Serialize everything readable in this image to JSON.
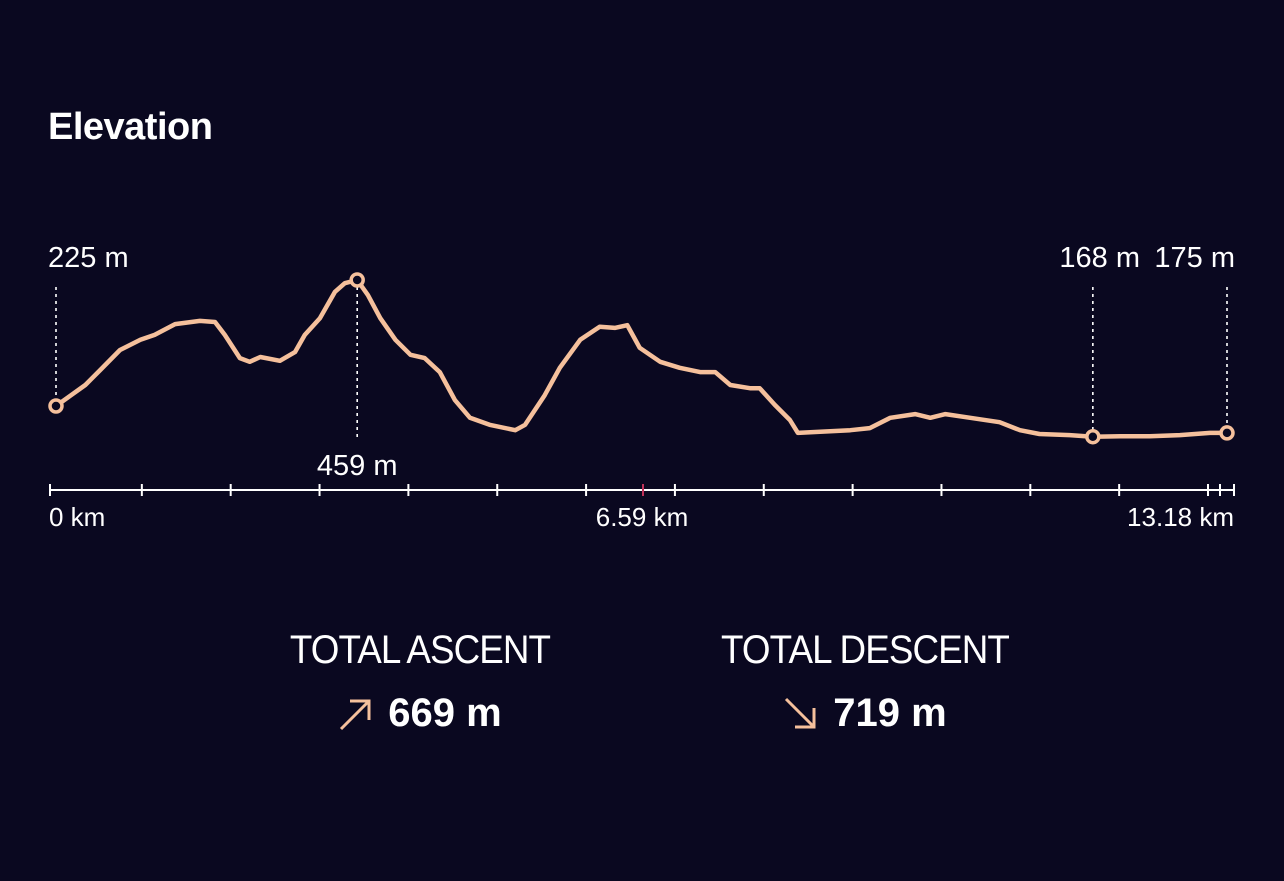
{
  "title": "Elevation",
  "colors": {
    "background": "#0a0820",
    "line": "#f5c09c",
    "axis": "#ffffff",
    "midTick": "#c0335a",
    "text": "#ffffff"
  },
  "chart_data": {
    "type": "line",
    "title": "Elevation",
    "xlabel": "",
    "ylabel": "",
    "x_unit": "km",
    "y_unit": "m",
    "xlim": [
      0,
      13.18
    ],
    "x_tick_labels": [
      "0 km",
      "6.59 km",
      "13.18 km"
    ],
    "x_tick_values": [
      0,
      6.59,
      13.18
    ],
    "minor_ticks_km": [
      0,
      1,
      2,
      3,
      4,
      5,
      6,
      7,
      8,
      9,
      10,
      11,
      12,
      13,
      13.18
    ],
    "grid": false,
    "series": [
      {
        "name": "Elevation",
        "x": [
          0,
          0.16,
          0.33,
          0.5,
          0.72,
          0.95,
          1.11,
          1.34,
          1.62,
          1.79,
          1.9,
          2.07,
          2.18,
          2.3,
          2.52,
          2.69,
          2.8,
          2.97,
          3.14,
          3.25,
          3.39,
          3.51,
          3.65,
          3.82,
          3.99,
          4.15,
          4.32,
          4.49,
          4.66,
          4.88,
          5.17,
          5.28,
          5.5,
          5.67,
          5.9,
          6.12,
          6.29,
          6.43,
          6.57,
          6.8,
          7.02,
          7.25,
          7.42,
          7.59,
          7.81,
          7.92,
          8.09,
          8.26,
          8.35,
          8.6,
          8.94,
          9.16,
          9.39,
          9.67,
          9.84,
          10.01,
          10.29,
          10.62,
          10.85,
          11.07,
          11.41,
          11.67,
          11.98,
          12.31,
          12.65,
          12.99,
          13.18
        ],
        "y": [
          225,
          244,
          264,
          292,
          329,
          348,
          357,
          377,
          383,
          381,
          357,
          314,
          307,
          316,
          309,
          325,
          357,
          388,
          437,
          453,
          459,
          431,
          388,
          348,
          320,
          314,
          288,
          236,
          203,
          190,
          180,
          190,
          245,
          296,
          348,
          372,
          370,
          375,
          333,
          307,
          296,
          288,
          288,
          264,
          258,
          258,
          227,
          199,
          175,
          177,
          180,
          184,
          203,
          210,
          203,
          210,
          203,
          195,
          180,
          173,
          171,
          168,
          169,
          169,
          171,
          175,
          175
        ]
      }
    ],
    "annotations": [
      {
        "x": 0,
        "y": 225,
        "label": "225 m",
        "position": "above"
      },
      {
        "x": 3.39,
        "y": 459,
        "label": "459 m",
        "position": "below"
      },
      {
        "x": 11.67,
        "y": 168,
        "label": "168 m",
        "position": "above"
      },
      {
        "x": 13.18,
        "y": 175,
        "label": "175 m",
        "position": "above"
      }
    ]
  },
  "stats": {
    "ascent": {
      "label": "TOTAL ASCENT",
      "value": "669 m",
      "icon": "arrow-up-right-icon"
    },
    "descent": {
      "label": "TOTAL DESCENT",
      "value": "719 m",
      "icon": "arrow-down-right-icon"
    }
  }
}
